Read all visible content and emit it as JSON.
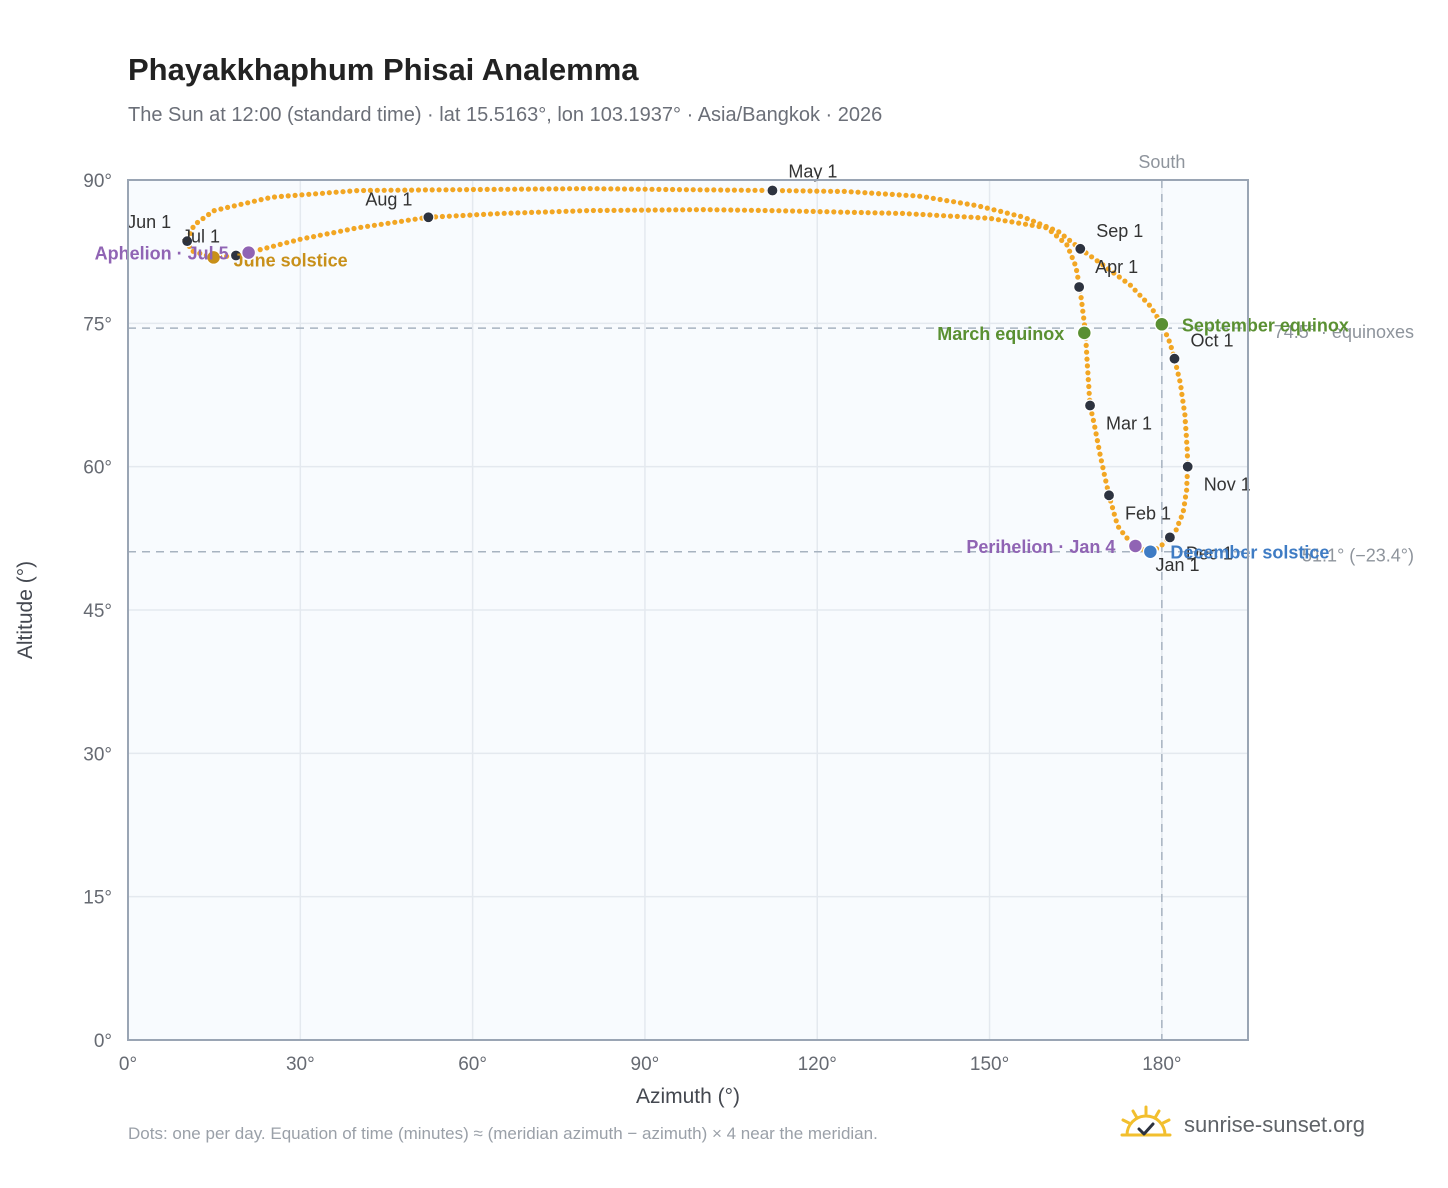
{
  "title": "Phayakkhaphum Phisai Analemma",
  "subtitle": "The Sun at 12:00 (standard time) · lat 15.5163°, lon 103.1937° · Asia/Bangkok · 2026",
  "footnote": "Dots: one per day. Equation of time (minutes) ≈ (meridian azimuth − azimuth) × 4 near the meridian.",
  "brand": {
    "name": "sunrise-sunset.org",
    "icon": "sun-check-icon"
  },
  "colors": {
    "curve": "#f2a623",
    "month": "#2d3340",
    "equinox": "#5a9032",
    "solstice_june": "#c8901a",
    "solstice_december": "#3f7cc4",
    "apsis": "#9064b4",
    "plot_bg": "#f8fbfe",
    "grid": "#e4e9ef",
    "border": "#9aa5b4",
    "ref_line": "#a7b3c0"
  },
  "chart_data": {
    "type": "scatter",
    "xlabel": "Azimuth (°)",
    "ylabel": "Altitude (°)",
    "xlim": [
      0,
      195
    ],
    "ylim": [
      0,
      90
    ],
    "xticks": [
      0,
      30,
      60,
      90,
      120,
      150,
      180
    ],
    "yticks": [
      0,
      15,
      30,
      45,
      60,
      75,
      90
    ],
    "xtick_labels": [
      "0°",
      "30°",
      "60°",
      "90°",
      "120°",
      "150°",
      "180°"
    ],
    "ytick_labels": [
      "0°",
      "15°",
      "30°",
      "45°",
      "60°",
      "75°",
      "90°"
    ],
    "grid": true,
    "reference_lines": [
      {
        "axis": "x",
        "value": 180,
        "label": "South"
      },
      {
        "axis": "y",
        "value": 74.5,
        "label": "74.5° · equinoxes"
      },
      {
        "axis": "y",
        "value": 51.1,
        "label": "51.1° (−23.4°)"
      }
    ],
    "path_points": [
      [
        178.0,
        51.1
      ],
      [
        176.8,
        51.3
      ],
      [
        175.4,
        51.8
      ],
      [
        173.8,
        52.6
      ],
      [
        172.3,
        53.8
      ],
      [
        170.8,
        57.0
      ],
      [
        169.4,
        60.8
      ],
      [
        168.2,
        64.5
      ],
      [
        167.5,
        66.4
      ],
      [
        167.1,
        70.0
      ],
      [
        166.7,
        74.0
      ],
      [
        166.2,
        76.5
      ],
      [
        165.7,
        78.8
      ],
      [
        165.0,
        81.0
      ],
      [
        163.5,
        83.2
      ],
      [
        160.0,
        85.0
      ],
      [
        150.0,
        86.0
      ],
      [
        135.0,
        86.5
      ],
      [
        120.0,
        86.7
      ],
      [
        112.0,
        86.8
      ],
      [
        100.0,
        86.9
      ],
      [
        80.0,
        86.8
      ],
      [
        65.0,
        86.5
      ],
      [
        52.3,
        86.1
      ],
      [
        40.0,
        85.0
      ],
      [
        30.0,
        83.8
      ],
      [
        21.0,
        82.4
      ],
      [
        18.8,
        82.1
      ],
      [
        14.9,
        81.9
      ],
      [
        11.0,
        82.6
      ],
      [
        10.3,
        83.6
      ],
      [
        11.5,
        85.3
      ],
      [
        15.0,
        86.8
      ],
      [
        25.0,
        88.2
      ],
      [
        40.0,
        88.9
      ],
      [
        60.0,
        89.0
      ],
      [
        80.0,
        89.1
      ],
      [
        95.0,
        89.0
      ],
      [
        112.2,
        88.9
      ],
      [
        125.0,
        88.8
      ],
      [
        138.0,
        88.3
      ],
      [
        148.0,
        87.3
      ],
      [
        156.0,
        86.1
      ],
      [
        162.0,
        84.6
      ],
      [
        165.8,
        82.8
      ],
      [
        170.0,
        81.0
      ],
      [
        174.5,
        79.0
      ],
      [
        178.0,
        76.8
      ],
      [
        180.0,
        74.9
      ],
      [
        181.4,
        73.0
      ],
      [
        182.2,
        71.3
      ],
      [
        183.2,
        68.8
      ],
      [
        184.0,
        65.5
      ],
      [
        184.4,
        62.0
      ],
      [
        184.5,
        60.0
      ],
      [
        184.3,
        57.5
      ],
      [
        183.7,
        55.2
      ],
      [
        182.5,
        53.4
      ],
      [
        181.1,
        52.5
      ],
      [
        179.7,
        51.6
      ],
      [
        178.0,
        51.1
      ]
    ],
    "months": [
      {
        "label": "Jan 1",
        "x": 178.2,
        "y": 51.2
      },
      {
        "label": "Feb 1",
        "x": 170.8,
        "y": 57.0
      },
      {
        "label": "Mar 1",
        "x": 167.5,
        "y": 66.4
      },
      {
        "label": "Apr 1",
        "x": 165.6,
        "y": 78.8
      },
      {
        "label": "May 1",
        "x": 112.2,
        "y": 88.9
      },
      {
        "label": "Jun 1",
        "x": 10.3,
        "y": 83.6
      },
      {
        "label": "Jul 1",
        "x": 18.8,
        "y": 82.1
      },
      {
        "label": "Aug 1",
        "x": 52.3,
        "y": 86.1
      },
      {
        "label": "Sep 1",
        "x": 165.8,
        "y": 82.8
      },
      {
        "label": "Oct 1",
        "x": 182.2,
        "y": 71.3
      },
      {
        "label": "Nov 1",
        "x": 184.5,
        "y": 60.0
      },
      {
        "label": "Dec 1",
        "x": 181.4,
        "y": 52.6
      }
    ],
    "events": [
      {
        "label": "March equinox",
        "x": 166.5,
        "y": 74.0,
        "kind": "equinox"
      },
      {
        "label": "September equinox",
        "x": 180.0,
        "y": 74.9,
        "kind": "equinox"
      },
      {
        "label": "June solstice",
        "x": 14.9,
        "y": 81.9,
        "kind": "solstice_june"
      },
      {
        "label": "December solstice",
        "x": 178.0,
        "y": 51.1,
        "kind": "solstice_december"
      },
      {
        "label": "Aphelion · Jul 5",
        "x": 21.0,
        "y": 82.4,
        "kind": "apsis"
      },
      {
        "label": "Perihelion · Jan 4",
        "x": 175.4,
        "y": 51.7,
        "kind": "apsis"
      }
    ]
  }
}
